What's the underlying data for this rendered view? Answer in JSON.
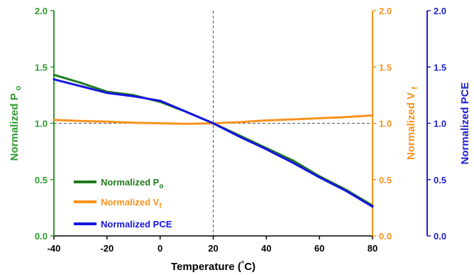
{
  "chart_data": {
    "type": "line",
    "xlabel": "Temperature (°C)",
    "xlim": [
      -40,
      80
    ],
    "x_ticks": [
      "-40",
      "-20",
      "0",
      "20",
      "40",
      "60",
      "80"
    ],
    "x_tick_values": [
      -40,
      -20,
      0,
      20,
      40,
      60,
      80
    ],
    "y_left": {
      "label": "Normalized P",
      "sub": "o",
      "color": "#2e9a2e",
      "lim": [
        0,
        2
      ],
      "ticks": [
        "0.0",
        "0.5",
        "1.0",
        "1.5",
        "2.0"
      ]
    },
    "y_right1": {
      "label": "Normalized V",
      "sub": "f",
      "color": "#f7931e",
      "lim": [
        0,
        2
      ],
      "ticks": [
        "0.0",
        "0.5",
        "1.0",
        "1.5",
        "2.0"
      ]
    },
    "y_right2": {
      "label": "Normalized PCE",
      "color": "#1f1fcf",
      "lim": [
        0,
        2
      ],
      "ticks": [
        "0.0",
        "0.5",
        "1.0",
        "1.5",
        "2.0"
      ]
    },
    "reference_lines": {
      "x": 20,
      "y": 1.0,
      "style": "dashed"
    },
    "legend_position": "bottom-left",
    "series": [
      {
        "name": "Normalized P",
        "sub": "o",
        "color": "#1f7a1f",
        "axis": "left",
        "x": [
          -40,
          -30,
          -20,
          -10,
          0,
          10,
          20,
          30,
          40,
          50,
          60,
          70,
          80
        ],
        "y": [
          1.43,
          1.36,
          1.28,
          1.25,
          1.19,
          1.1,
          1.0,
          0.89,
          0.78,
          0.67,
          0.53,
          0.41,
          0.27
        ]
      },
      {
        "name": "Normalized V",
        "sub": "f",
        "color": "#f7931e",
        "axis": "right1",
        "x": [
          -40,
          -30,
          -20,
          -10,
          0,
          10,
          20,
          30,
          40,
          50,
          60,
          70,
          80
        ],
        "y": [
          1.03,
          1.02,
          1.015,
          1.005,
          1.0,
          0.995,
          1.0,
          1.01,
          1.025,
          1.035,
          1.045,
          1.055,
          1.07
        ]
      },
      {
        "name": "Normalized PCE",
        "color": "#1515e0",
        "axis": "right2",
        "x": [
          -40,
          -30,
          -20,
          -10,
          0,
          10,
          20,
          30,
          40,
          50,
          60,
          70,
          80
        ],
        "y": [
          1.39,
          1.33,
          1.27,
          1.24,
          1.2,
          1.1,
          1.0,
          0.88,
          0.77,
          0.65,
          0.52,
          0.4,
          0.26
        ]
      }
    ]
  }
}
